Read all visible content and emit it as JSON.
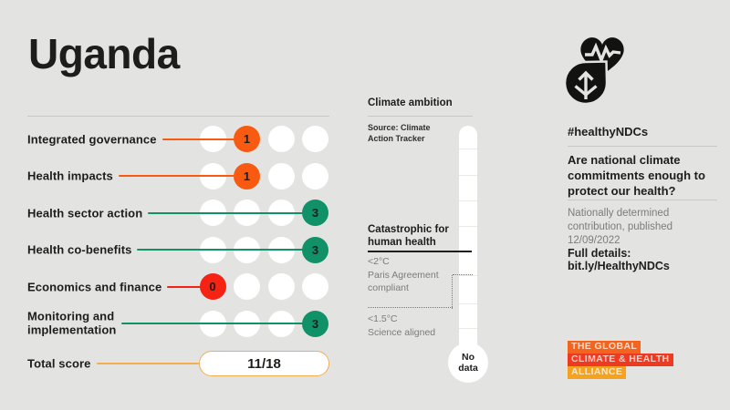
{
  "title": "Uganda",
  "scorecard": {
    "rows": [
      {
        "label": "Integrated governance",
        "score": 1,
        "color": "#F75A10"
      },
      {
        "label": "Health impacts",
        "score": 1,
        "color": "#F75A10"
      },
      {
        "label": "Health sector action",
        "score": 3,
        "color": "#109168"
      },
      {
        "label": "Health co-benefits",
        "score": 3,
        "color": "#109168"
      },
      {
        "label": "Economics and finance",
        "score": 0,
        "color": "#F42313"
      },
      {
        "label": "Monitoring and\nimplementation",
        "score": 3,
        "color": "#109168"
      }
    ],
    "max_score": 3,
    "total": {
      "label": "Total score",
      "value": "11/18",
      "accent": "#F3AE4F"
    }
  },
  "chart_data": {
    "type": "bar",
    "title": "Uganda — healthy NDC scorecard",
    "categories": [
      "Integrated governance",
      "Health impacts",
      "Health sector action",
      "Health co-benefits",
      "Economics and finance",
      "Monitoring and implementation"
    ],
    "values": [
      1,
      1,
      3,
      3,
      0,
      3
    ],
    "value_range": [
      0,
      3
    ],
    "total_score": "11/18",
    "climate_ambition": "No data"
  },
  "climate_ambition": {
    "heading": "Climate ambition",
    "source": "Source: Climate\nAction Tracker",
    "level_catastrophic": "Catastrophic for human health",
    "level_2c": "<2°C\nParis Agreement compliant",
    "level_15c": "<1.5°C\nScience aligned",
    "no_data": "No data"
  },
  "campaign": {
    "icon": "heartbeat-leaf-icon",
    "hashtag": "#healthyNDCs",
    "question": "Are national climate commitments enough to protect our health?",
    "ndc_info": "Nationally determined contribution, published 12/09/2022",
    "details": "Full details: bit.ly/HealthyNDCs",
    "logo_lines": [
      {
        "text": "THE GLOBAL",
        "bg": "#F3641E"
      },
      {
        "text": "CLIMATE & HEALTH",
        "bg": "#EE3A20"
      },
      {
        "text": "ALLIANCE",
        "bg": "#F5A21E"
      }
    ]
  }
}
